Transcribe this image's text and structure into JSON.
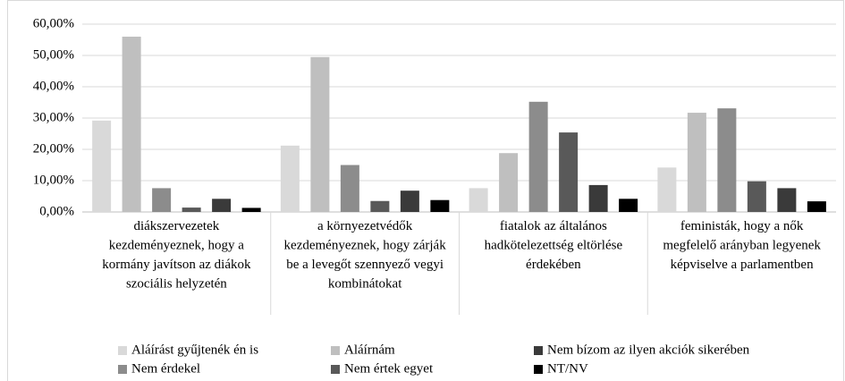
{
  "chart_data": {
    "type": "bar",
    "categories": [
      "diákszervezetek kezdeményeznek, hogy a kormány javítson az diákok szociális helyzetén",
      "a környezetvédők kezdeményeznek, hogy zárják be a levegőt szennyező vegyi kombinátokat",
      "fiatalok az általános hadkötelezettség eltörlése érdekében",
      "feministák, hogy a nők megfelelő arányban legyenek képviselve a parlamentben"
    ],
    "series": [
      {
        "name": "Aláírást gyűjtenék én is",
        "color": "#d9d9d9",
        "values": [
          29.2,
          21.2,
          7.6,
          14.2
        ]
      },
      {
        "name": "Aláírnám",
        "color": "#bfbfbf",
        "values": [
          56,
          49.5,
          18.8,
          31.7
        ]
      },
      {
        "name": "Nem érdekel",
        "color": "#8c8c8c",
        "values": [
          7.6,
          15,
          35.2,
          33.1
        ]
      },
      {
        "name": "Nem értek egyet",
        "color": "#595959",
        "values": [
          1.4,
          3.5,
          25.4,
          9.8
        ]
      },
      {
        "name": "Nem bízom az ilyen akciók sikerében",
        "color": "#3a3a3a",
        "values": [
          4.2,
          6.8,
          8.6,
          7.6
        ]
      },
      {
        "name": "NT/NV",
        "color": "#000000",
        "values": [
          1.3,
          3.8,
          4.2,
          3.4
        ]
      }
    ],
    "ylim": [
      0,
      60
    ],
    "yticks": [
      {
        "value": 0,
        "label": "0,00%"
      },
      {
        "value": 10,
        "label": "10,00%"
      },
      {
        "value": 20,
        "label": "20,00%"
      },
      {
        "value": 30,
        "label": "30,00%"
      },
      {
        "value": 40,
        "label": "40,00%"
      },
      {
        "value": 50,
        "label": "50,00%"
      },
      {
        "value": 60,
        "label": "60,00%"
      }
    ]
  }
}
